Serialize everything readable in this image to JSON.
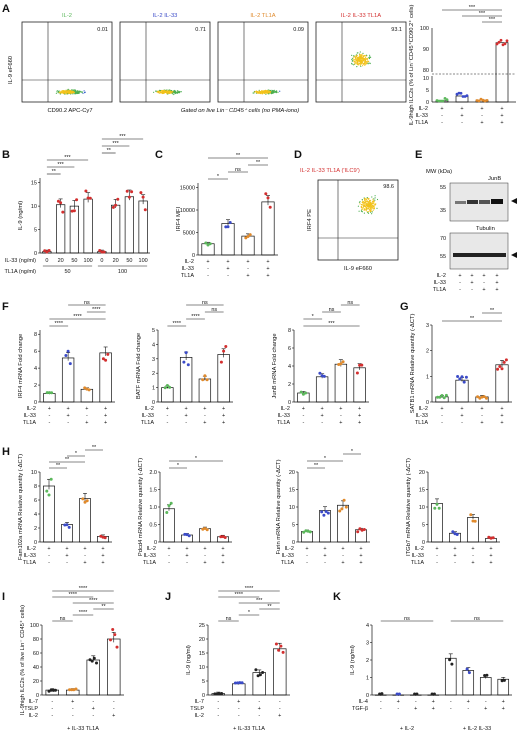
{
  "panel_labels": [
    "A",
    "B",
    "C",
    "D",
    "E",
    "F",
    "G",
    "H",
    "I",
    "J",
    "K"
  ],
  "flow_A": {
    "y_label": "IL-9 eF660",
    "x_label": "CD90.2 APC-Cy7",
    "footnote": "Gated on live Lin⁻ CD45⁺ cells (no PMA-iono)",
    "plots": [
      {
        "title": "IL-2",
        "pct": "0.01",
        "color": "#5cb85c"
      },
      {
        "title": "IL-2 IL-33",
        "pct": "0.71",
        "color": "#3b4bc8"
      },
      {
        "title": "IL-2 TL1A",
        "pct": "0.09",
        "color": "#e08a2c"
      },
      {
        "title": "IL-2 IL-33 TL1A",
        "pct": "93.1",
        "color": "#d32f2f"
      }
    ]
  },
  "flow_D": {
    "title": "IL-2 IL-33 TL1A ('ILC9')",
    "pct": "98.6",
    "x_label": "IL-9 eF660",
    "y_label": "IRF4 PE",
    "title_color": "#d32f2f"
  },
  "blot_E": {
    "mw_header": "MW (kDa)",
    "protein1": "JunB",
    "protein2": "Tubulin",
    "mw_top": [
      "55",
      "35"
    ],
    "mw_bottom": [
      "70",
      "55"
    ],
    "cond_labels": [
      "IL-2",
      "IL-33",
      "TL1A"
    ],
    "cond_signs": [
      [
        "+",
        "+",
        "+",
        "+"
      ],
      [
        "-",
        "+",
        "-",
        "+"
      ],
      [
        "-",
        "-",
        "+",
        "+"
      ]
    ]
  },
  "cond_labels_std": [
    "IL-2",
    "IL-33",
    "TL1A"
  ],
  "cond_signs_std": [
    [
      "+",
      "+",
      "+",
      "+"
    ],
    [
      "-",
      "+",
      "-",
      "+"
    ],
    [
      "-",
      "-",
      "+",
      "+"
    ]
  ],
  "colors": {
    "il2": "#5cb85c",
    "il33": "#3b4bc8",
    "tl1a": "#e08a2c",
    "both": "#d32f2f"
  },
  "chart_data": [
    {
      "id": "A_bar",
      "type": "bar",
      "ylabel": "IL-9high ILC2s (% of Lin⁻CD45⁺CD90.2⁺ cells)",
      "categories": [
        "IL-2",
        "IL-2 IL-33",
        "IL-2 TL1A",
        "IL-2 IL-33 TL1A"
      ],
      "values": [
        0.5,
        2.5,
        0.8,
        93
      ],
      "yticks_low": [
        "0",
        "5",
        "10"
      ],
      "yticks_high": [
        "80",
        "90",
        "100"
      ],
      "significance": [
        "***",
        "***",
        "***"
      ]
    },
    {
      "id": "B",
      "type": "bar",
      "ylabel": "IL-9 (ng/ml)",
      "yticks": [
        "0",
        "5",
        "10",
        "15"
      ],
      "ylim": [
        0,
        16
      ],
      "xrow1_label": "IL-33 (ng/ml)",
      "xrow1": [
        "0",
        "20",
        "50",
        "100",
        "0",
        "20",
        "50",
        "100"
      ],
      "xrow2_label": "TL1A (ng/ml)",
      "xrow2": [
        "50",
        "100"
      ],
      "values": [
        0.3,
        10.3,
        10,
        11.5,
        0.3,
        10.2,
        12,
        11.1
      ],
      "significance": [
        "**",
        "***",
        "***",
        "**",
        "***",
        "***"
      ]
    },
    {
      "id": "C",
      "type": "bar",
      "ylabel": "IRF4 MFI",
      "yticks": [
        "0",
        "5000",
        "10000",
        "15000"
      ],
      "ylim": [
        0,
        16000
      ],
      "values": [
        2500,
        7000,
        4200,
        11800
      ],
      "significance": [
        "*",
        "ns",
        "**",
        "**"
      ]
    },
    {
      "id": "F1",
      "type": "bar",
      "ylabel": "IRF4 mRNA Fold change",
      "yticks": [
        "0",
        "2",
        "4",
        "6",
        "8"
      ],
      "ylim": [
        0,
        8.5
      ],
      "values": [
        1,
        5.2,
        1.5,
        5.8
      ],
      "significance": [
        "****",
        "****",
        "****",
        "ns"
      ]
    },
    {
      "id": "F2",
      "type": "bar",
      "ylabel": "BATF mRNA Fold change",
      "yticks": [
        "0",
        "1",
        "2",
        "3",
        "4",
        "5"
      ],
      "ylim": [
        0,
        5
      ],
      "values": [
        1,
        3.1,
        1.6,
        3.3
      ],
      "significance": [
        "****",
        "****",
        "ns",
        "ns"
      ]
    },
    {
      "id": "F3",
      "type": "bar",
      "ylabel": "JunB mRNA Fold change",
      "yticks": [
        "0",
        "2",
        "4",
        "6",
        "8"
      ],
      "ylim": [
        0,
        8
      ],
      "values": [
        1,
        2.8,
        4.2,
        3.8
      ],
      "significance": [
        "***",
        "*",
        "ns",
        "ns"
      ]
    },
    {
      "id": "G",
      "type": "bar",
      "ylabel": "SATB1 mRNA Relative quantity (-ΔCT)",
      "yticks": [
        "0",
        "1",
        "2",
        "3"
      ],
      "ylim": [
        0,
        3
      ],
      "values": [
        0.2,
        0.85,
        0.2,
        1.45
      ],
      "significance": [
        "**",
        "**"
      ]
    },
    {
      "id": "H1",
      "type": "bar",
      "ylabel": "Fam102a mRNA Relative quantity (-ΔCT)",
      "yticks": [
        "0",
        "2",
        "4",
        "6",
        "8",
        "10"
      ],
      "ylim": [
        0,
        10
      ],
      "values": [
        8,
        2.5,
        6.2,
        0.8
      ],
      "significance": [
        "**",
        "**",
        "*",
        "**"
      ]
    },
    {
      "id": "H2",
      "type": "bar",
      "ylabel": "Pdcd4 mRNA Relative quantity (-ΔCT)",
      "yticks": [
        "0",
        "0.5",
        "1.0",
        "1.5",
        "2.0"
      ],
      "ylim": [
        0,
        2
      ],
      "values": [
        0.95,
        0.2,
        0.38,
        0.15
      ],
      "significance": [
        "*",
        "*"
      ]
    },
    {
      "id": "H3",
      "type": "bar",
      "ylabel": "Furin mRNA Relative quantity (-ΔCT)",
      "yticks": [
        "0",
        "5",
        "10",
        "15",
        "20"
      ],
      "ylim": [
        0,
        20
      ],
      "values": [
        3,
        9,
        10.5,
        3.5
      ],
      "significance": [
        "**",
        "*",
        "*"
      ]
    },
    {
      "id": "H4",
      "type": "bar",
      "ylabel": "ITGb7 mRNA Relative quantity (-ΔCT)",
      "yticks": [
        "0",
        "5",
        "10",
        "15",
        "20"
      ],
      "ylim": [
        0,
        20
      ],
      "values": [
        11,
        2.5,
        7,
        1
      ],
      "significance": []
    },
    {
      "id": "I",
      "type": "bar",
      "ylabel": "IL-9high ILC2s (% of live Lin⁻ CD45⁺ cells)",
      "yticks": [
        "0",
        "20",
        "40",
        "60",
        "80",
        "100"
      ],
      "ylim": [
        0,
        100
      ],
      "cond_labels": [
        "IL-7",
        "TSLP",
        "IL-2"
      ],
      "cond_signs": [
        [
          "-",
          "+",
          "-",
          "-"
        ],
        [
          "-",
          "-",
          "+",
          "-"
        ],
        [
          "-",
          "-",
          "-",
          "+"
        ]
      ],
      "footer": "+ IL-33 TL1A",
      "colors": [
        "#222222",
        "#e08a2c",
        "#222222",
        "#d32f2f"
      ],
      "values": [
        7,
        7,
        50,
        80
      ],
      "significance": [
        "ns",
        "****",
        "**",
        "****",
        "****",
        "****"
      ]
    },
    {
      "id": "J",
      "type": "bar",
      "ylabel": "IL-9 (ng/ml)",
      "yticks": [
        "0",
        "5",
        "10",
        "15",
        "20",
        "25"
      ],
      "ylim": [
        0,
        25
      ],
      "cond_labels": [
        "IL-7",
        "TSLP",
        "IL-2"
      ],
      "cond_signs": [
        [
          "-",
          "+",
          "-",
          "-"
        ],
        [
          "-",
          "-",
          "+",
          "-"
        ],
        [
          "-",
          "-",
          "-",
          "+"
        ]
      ],
      "footer": "+ IL-33 TL1A",
      "colors": [
        "#222222",
        "#3b4bc8",
        "#222222",
        "#d32f2f"
      ],
      "values": [
        0.5,
        4,
        8,
        16.5
      ],
      "significance": [
        "ns",
        "*",
        "**",
        "***",
        "****",
        "****"
      ]
    },
    {
      "id": "K",
      "type": "bar",
      "ylabel": "IL-9 (ng/ml)",
      "yticks": [
        "0",
        "1",
        "2",
        "3",
        "4"
      ],
      "ylim": [
        0,
        4
      ],
      "cond_labels": [
        "IL-4",
        "TGF-β"
      ],
      "cond_signs": [
        [
          "-",
          "+",
          "-",
          "+",
          "-",
          "+",
          "-",
          "+"
        ],
        [
          "-",
          "-",
          "+",
          "+",
          "-",
          "-",
          "+",
          "+"
        ]
      ],
      "group_labels": [
        "+ IL-2",
        "+ IL-2 IL-33"
      ],
      "values": [
        0,
        0,
        0,
        0,
        2.1,
        1.4,
        1.0,
        0.9
      ],
      "significance": [
        "ns",
        "ns"
      ]
    }
  ]
}
